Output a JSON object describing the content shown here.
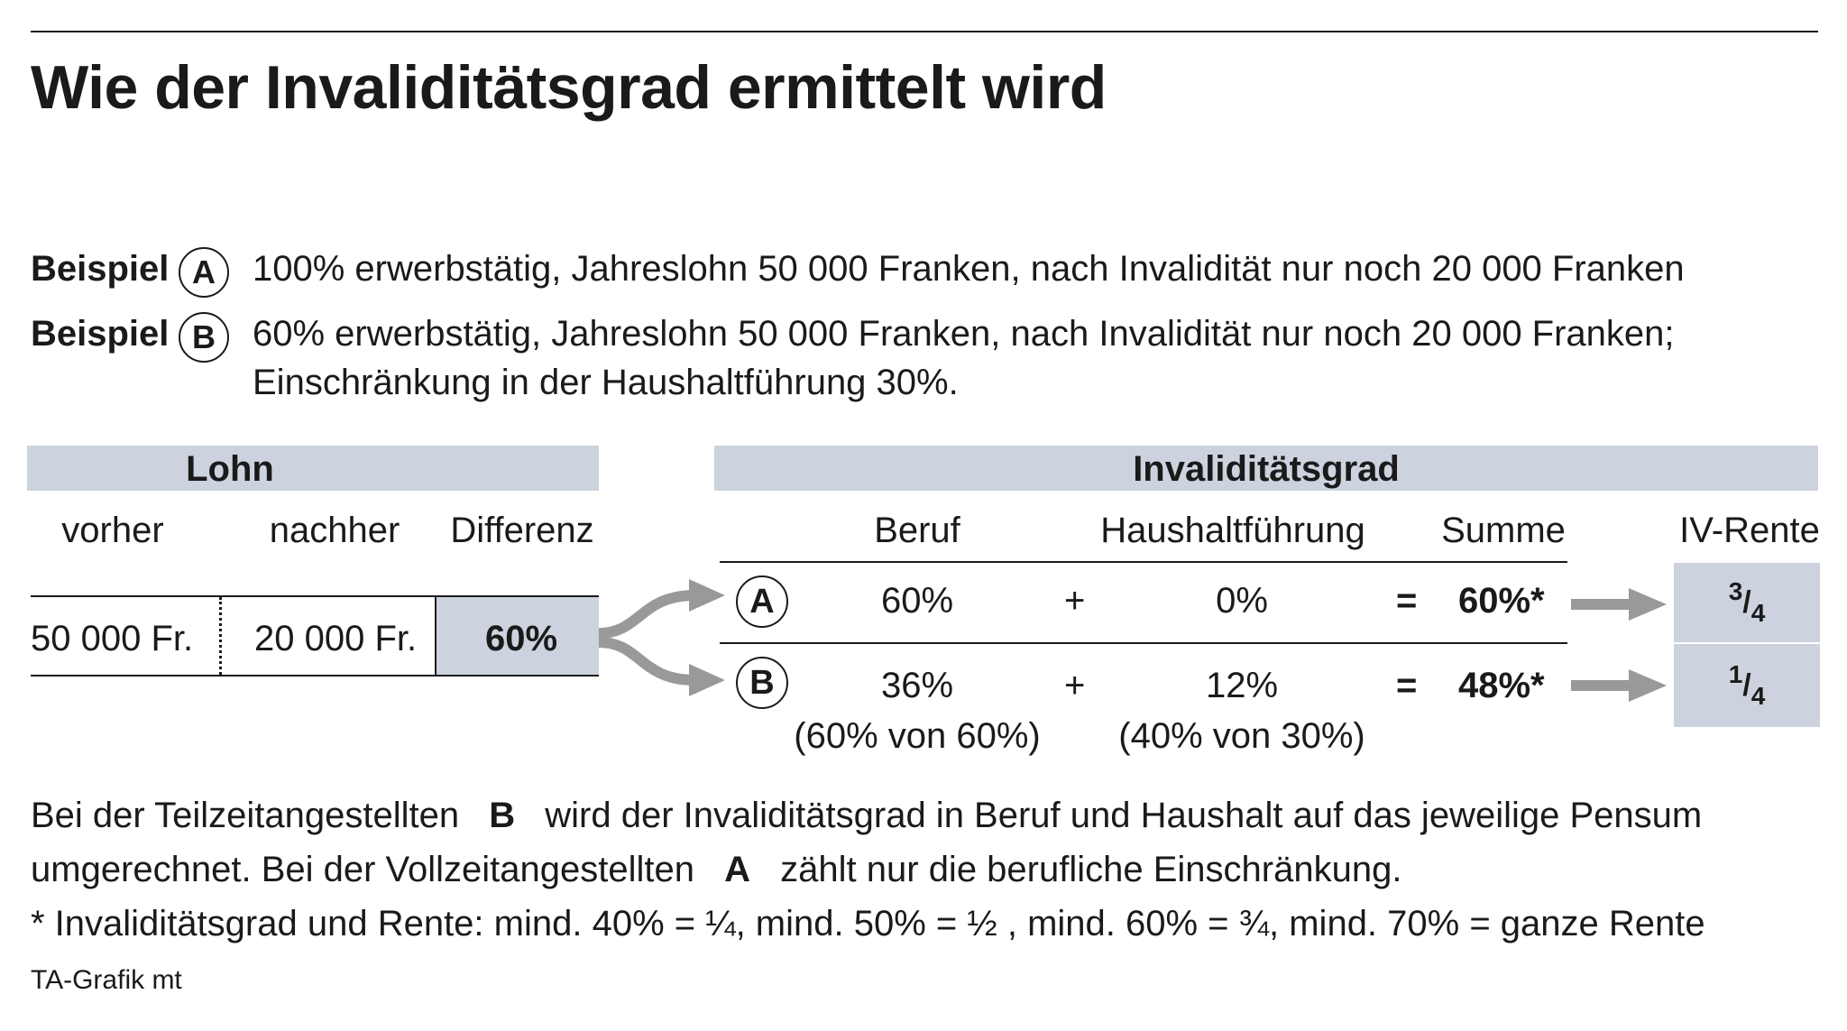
{
  "title": "Wie der Invaliditätsgrad ermittelt wird",
  "examples": [
    {
      "label": "Beispiel",
      "marker": "A",
      "text": "100% erwerbstätig, Jahreslohn 50 000 Franken, nach Invalidität nur noch 20 000 Franken"
    },
    {
      "label": "Beispiel",
      "marker": "B",
      "text": "60% erwerbstätig, Jahreslohn 50 000 Franken, nach Invalidität nur noch 20 000 Franken;",
      "text2": "Einschränkung in der Haushaltführung 30%."
    }
  ],
  "lohn": {
    "header": "Lohn",
    "col_vorher": "vorher",
    "col_nachher": "nachher",
    "col_differenz": "Differenz",
    "vorher": "50 000 Fr.",
    "nachher": "20 000 Fr.",
    "differenz": "60%"
  },
  "grad": {
    "header": "Invaliditätsgrad",
    "col_beruf": "Beruf",
    "col_haushalt": "Haushaltführung",
    "col_summe": "Summe",
    "col_rente": "IV-Rente",
    "rows": [
      {
        "marker": "A",
        "beruf": "60%",
        "plus": "+",
        "haushalt": "0%",
        "equals": "=",
        "summe": "60%*",
        "rente_num": "3",
        "rente_den": "4",
        "beruf_note": "",
        "haushalt_note": ""
      },
      {
        "marker": "B",
        "beruf": "36%",
        "plus": "+",
        "haushalt": "12%",
        "equals": "=",
        "summe": "48%*",
        "rente_num": "1",
        "rente_den": "4",
        "beruf_note": "(60% von 60%)",
        "haushalt_note": "(40% von 30%)"
      }
    ]
  },
  "notes": {
    "line1_a": "Bei der Teilzeitangestellten",
    "line1_marker": "B",
    "line1_b": "wird der Invaliditätsgrad in Beruf und Haushalt auf das jeweilige Pensum",
    "line2_a": "umgerechnet. Bei der Vollzeitangestellten",
    "line2_marker": "A",
    "line2_b": "zählt nur die berufliche Einschränkung.",
    "footnote": "* Invaliditätsgrad und Rente: mind. 40% = ¼, mind. 50% = ½ , mind. 60% = ¾, mind. 70% = ganze Rente",
    "credit": "TA-Grafik mt"
  },
  "colors": {
    "band": "#ccd3df",
    "arrow": "#999999",
    "text": "#1a1a1a"
  }
}
